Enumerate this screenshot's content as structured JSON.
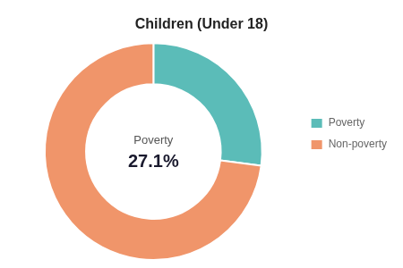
{
  "chart_data": {
    "type": "doughnut",
    "title": "Children (Under 18)",
    "categories": [
      "Poverty",
      "Non-poverty"
    ],
    "values": [
      27.1,
      72.9
    ],
    "colors": [
      "#5bbcb8",
      "#f0956a"
    ],
    "annotations": [
      "Poverty",
      "27.1%"
    ],
    "legend": "right"
  }
}
